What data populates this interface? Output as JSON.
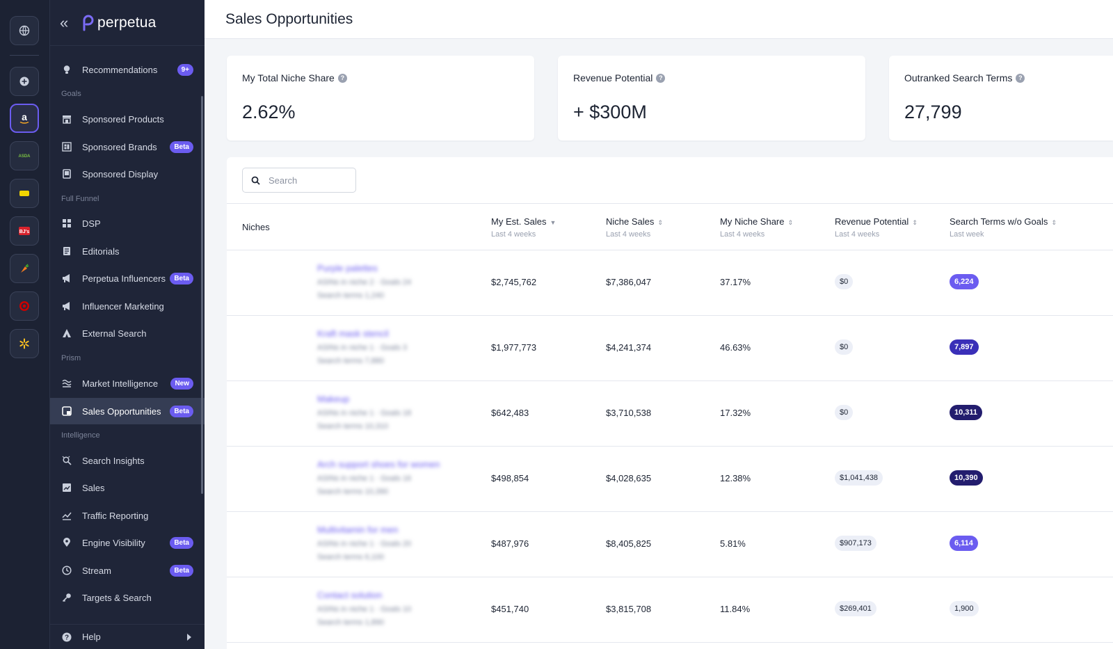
{
  "brand": {
    "name": "perpetua",
    "accent": "#6b5cf0"
  },
  "rail": {
    "items": [
      {
        "name": "global"
      },
      {
        "name": "add"
      },
      {
        "name": "amazon",
        "label": "a"
      },
      {
        "name": "asda",
        "label": "ASDA"
      },
      {
        "name": "yellow-retailer"
      },
      {
        "name": "bjs",
        "label": "BJ's"
      },
      {
        "name": "instacart"
      },
      {
        "name": "target"
      },
      {
        "name": "walmart"
      }
    ]
  },
  "sidebar": {
    "items": [
      {
        "label": "Recommendations",
        "badge": "9+"
      },
      {
        "label": "Sponsored Products"
      },
      {
        "label": "Sponsored Brands",
        "badge": "Beta"
      },
      {
        "label": "Sponsored Display"
      },
      {
        "label": "DSP"
      },
      {
        "label": "Editorials"
      },
      {
        "label": "Perpetua Influencers",
        "badge": "Beta"
      },
      {
        "label": "Influencer Marketing"
      },
      {
        "label": "External Search"
      },
      {
        "label": "Market Intelligence",
        "badge": "New"
      },
      {
        "label": "Sales Opportunities",
        "badge": "Beta"
      },
      {
        "label": "Search Insights"
      },
      {
        "label": "Sales"
      },
      {
        "label": "Traffic Reporting"
      },
      {
        "label": "Engine Visibility",
        "badge": "Beta"
      },
      {
        "label": "Stream",
        "badge": "Beta"
      },
      {
        "label": "Targets & Search"
      }
    ],
    "sections": [
      "Goals",
      "Full Funnel",
      "Prism",
      "Intelligence"
    ],
    "help_label": "Help"
  },
  "page": {
    "title": "Sales Opportunities"
  },
  "cards": [
    {
      "label": "My Total Niche Share",
      "value": "2.62%"
    },
    {
      "label": "Revenue Potential",
      "value": "+ $300M"
    },
    {
      "label": "Outranked Search Terms",
      "value": "27,799"
    }
  ],
  "search": {
    "placeholder": "Search"
  },
  "table": {
    "columns": [
      {
        "label": "Niches",
        "sub": ""
      },
      {
        "label": "My Est. Sales",
        "sub": "Last 4 weeks"
      },
      {
        "label": "Niche Sales",
        "sub": "Last 4 weeks"
      },
      {
        "label": "My Niche Share",
        "sub": "Last 4 weeks"
      },
      {
        "label": "Revenue Potential",
        "sub": "Last 4 weeks"
      },
      {
        "label": "Search Terms w/o Goals",
        "sub": "Last week"
      }
    ],
    "rows": [
      {
        "niche": "Purple palettes",
        "meta1": "ASINs in niche 2 · Goals 24",
        "meta2": "Search terms 1,240",
        "my_sales": "$2,745,762",
        "niche_sales": "$7,386,047",
        "share": "37.17%",
        "revenue": "$0",
        "terms": "6,224",
        "terms_color": "#6b5cf0"
      },
      {
        "niche": "Kraft mask stencil",
        "meta1": "ASINs in niche 1 · Goals 3",
        "meta2": "Search terms 7,880",
        "my_sales": "$1,977,773",
        "niche_sales": "$4,241,374",
        "share": "46.63%",
        "revenue": "$0",
        "terms": "7,897",
        "terms_color": "#3a2fb8"
      },
      {
        "niche": "Makeup",
        "meta1": "ASINs in niche 1 · Goals 18",
        "meta2": "Search terms 10,310",
        "my_sales": "$642,483",
        "niche_sales": "$3,710,538",
        "share": "17.32%",
        "revenue": "$0",
        "terms": "10,311",
        "terms_color": "#231d6e"
      },
      {
        "niche": "Arch support shoes for women",
        "meta1": "ASINs in niche 1 · Goals 16",
        "meta2": "Search terms 10,390",
        "my_sales": "$498,854",
        "niche_sales": "$4,028,635",
        "share": "12.38%",
        "revenue": "$1,041,438",
        "terms": "10,390",
        "terms_color": "#231d6e"
      },
      {
        "niche": "Multivitamin for men",
        "meta1": "ASINs in niche 1 · Goals 20",
        "meta2": "Search terms 6,100",
        "my_sales": "$487,976",
        "niche_sales": "$8,405,825",
        "share": "5.81%",
        "revenue": "$907,173",
        "terms": "6,114",
        "terms_color": "#6b5cf0"
      },
      {
        "niche": "Contact solution",
        "meta1": "ASINs in niche 1 · Goals 10",
        "meta2": "Search terms 1,890",
        "my_sales": "$451,740",
        "niche_sales": "$3,815,708",
        "share": "11.84%",
        "revenue": "$269,401",
        "terms": "1,900",
        "terms_color": ""
      }
    ]
  }
}
